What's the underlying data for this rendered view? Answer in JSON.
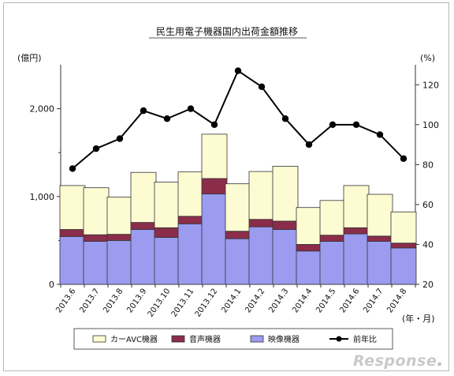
{
  "chart_data": {
    "type": "bar+line",
    "title": "民生用電子機器国内出荷金額推移",
    "left_axis_unit": "(億円)",
    "right_axis_unit": "(%)",
    "x_axis_unit": "(年・月)",
    "categories": [
      "2013.6",
      "2013.7",
      "2013.8",
      "2013.9",
      "2013.10",
      "2013.11",
      "2013.12",
      "2014.1",
      "2014.2",
      "2014.3",
      "2014.4",
      "2014.5",
      "2014.6",
      "2014.7",
      "2014.8"
    ],
    "left_ylim": [
      0,
      2500
    ],
    "left_ticks": [
      0,
      1000,
      2000
    ],
    "left_tick_labels": [
      "0",
      "1,000",
      "2,000"
    ],
    "right_ylim": [
      20,
      130
    ],
    "right_ticks": [
      20,
      40,
      60,
      80,
      100,
      120
    ],
    "stacked_series": [
      {
        "name": "映像機器",
        "color": "#9b9bf0",
        "values": [
          545,
          490,
          500,
          625,
          535,
          690,
          1030,
          520,
          655,
          625,
          380,
          490,
          575,
          490,
          415
        ]
      },
      {
        "name": "音声機器",
        "color": "#8b2d4a",
        "values": [
          80,
          75,
          70,
          80,
          110,
          85,
          175,
          85,
          85,
          95,
          75,
          70,
          70,
          60,
          55
        ]
      },
      {
        "name": "カーAVC機器",
        "color": "#fdfbd2",
        "values": [
          500,
          535,
          425,
          570,
          520,
          505,
          505,
          540,
          545,
          625,
          420,
          395,
          480,
          475,
          355
        ]
      }
    ],
    "line_series": {
      "name": "前年比",
      "color": "#000000",
      "values": [
        78,
        88,
        93,
        107,
        103,
        108,
        100,
        127,
        119,
        103,
        90,
        100,
        100,
        95,
        83
      ]
    },
    "legend_order": [
      "カーAVC機器",
      "音声機器",
      "映像機器",
      "前年比"
    ],
    "legend_position": "bottom",
    "grid": false
  },
  "watermark": {
    "text": "Response",
    "suffix": "."
  }
}
